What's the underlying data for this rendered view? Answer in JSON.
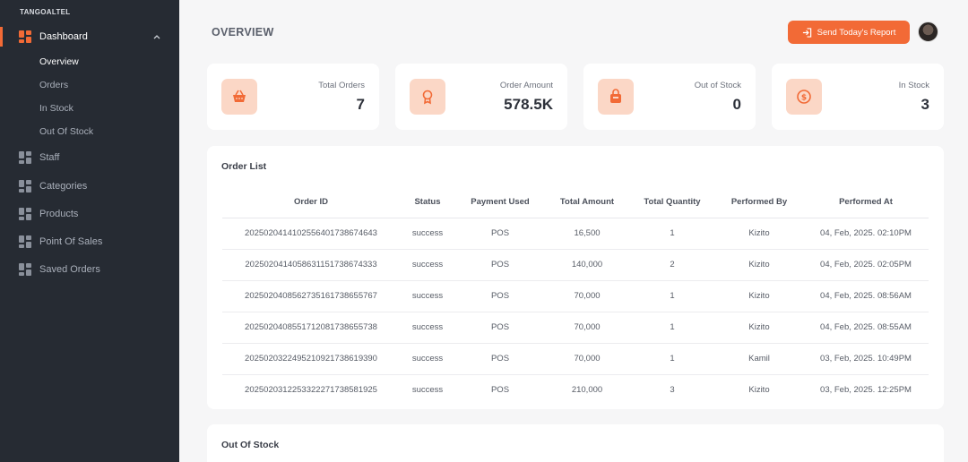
{
  "brand": "TANGOALTEL",
  "sidebar": {
    "dashboard": "Dashboard",
    "sub": [
      "Overview",
      "Orders",
      "In Stock",
      "Out Of Stock"
    ],
    "items": [
      "Staff",
      "Categories",
      "Products",
      "Point Of Sales",
      "Saved Orders"
    ]
  },
  "header": {
    "title": "OVERVIEW",
    "report_button": "Send Today's Report"
  },
  "stats": [
    {
      "label": "Total Orders",
      "value": "7",
      "icon": "basket-icon"
    },
    {
      "label": "Order Amount",
      "value": "578.5K",
      "icon": "award-icon"
    },
    {
      "label": "Out of Stock",
      "value": "0",
      "icon": "bag-icon"
    },
    {
      "label": "In Stock",
      "value": "3",
      "icon": "dollar-icon"
    }
  ],
  "orders": {
    "title": "Order List",
    "columns": [
      "Order ID",
      "Status",
      "Payment Used",
      "Total Amount",
      "Total Quantity",
      "Performed By",
      "Performed At"
    ],
    "rows": [
      [
        "20250204141025564017386746​43",
        "success",
        "POS",
        "16,500",
        "1",
        "Kizito",
        "04, Feb, 2025. 02:10PM"
      ],
      [
        "2025020414058631151738674333",
        "success",
        "POS",
        "140,000",
        "2",
        "Kizito",
        "04, Feb, 2025. 02:05PM"
      ],
      [
        "2025020408562735161738655767",
        "success",
        "POS",
        "70,000",
        "1",
        "Kizito",
        "04, Feb, 2025. 08:56AM"
      ],
      [
        "2025020408551712081738655738",
        "success",
        "POS",
        "70,000",
        "1",
        "Kizito",
        "04, Feb, 2025. 08:55AM"
      ],
      [
        "2025020322495210921738619390",
        "success",
        "POS",
        "70,000",
        "1",
        "Kamil",
        "03, Feb, 2025. 10:49PM"
      ],
      [
        "2025020312253322271738581925",
        "success",
        "POS",
        "210,000",
        "3",
        "Kizito",
        "03, Feb, 2025. 12:25PM"
      ]
    ]
  },
  "out_of_stock": {
    "title": "Out Of Stock"
  },
  "colors": {
    "accent": "#f26a36",
    "sidebar": "#262b33",
    "icon_bg": "#fbd7c6"
  }
}
